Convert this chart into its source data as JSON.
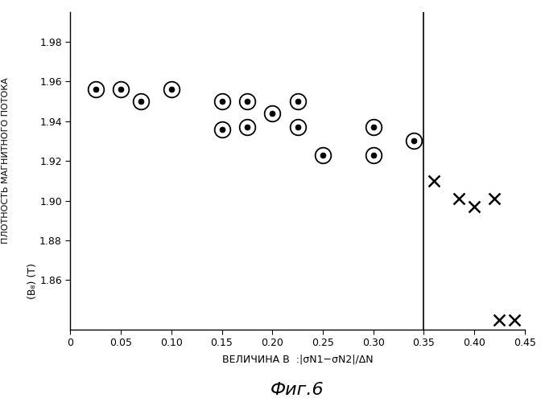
{
  "circle_points": [
    [
      0.025,
      1.956
    ],
    [
      0.05,
      1.956
    ],
    [
      0.07,
      1.95
    ],
    [
      0.1,
      1.956
    ],
    [
      0.15,
      1.95
    ],
    [
      0.15,
      1.936
    ],
    [
      0.175,
      1.95
    ],
    [
      0.175,
      1.937
    ],
    [
      0.2,
      1.944
    ],
    [
      0.225,
      1.95
    ],
    [
      0.225,
      1.937
    ],
    [
      0.25,
      1.923
    ],
    [
      0.3,
      1.937
    ],
    [
      0.3,
      1.923
    ],
    [
      0.34,
      1.93
    ]
  ],
  "cross_points": [
    [
      0.36,
      1.91
    ],
    [
      0.385,
      1.901
    ],
    [
      0.4,
      1.897
    ],
    [
      0.42,
      1.901
    ],
    [
      0.425,
      1.84
    ],
    [
      0.44,
      1.84
    ]
  ],
  "vline_x": 0.35,
  "xlim": [
    0.0,
    0.45
  ],
  "ylim": [
    1.835,
    1.995
  ],
  "xticks": [
    0,
    0.05,
    0.1,
    0.15,
    0.2,
    0.25,
    0.3,
    0.35,
    0.4,
    0.45
  ],
  "yticks": [
    1.86,
    1.88,
    1.9,
    1.92,
    1.94,
    1.96,
    1.98
  ],
  "ytick_labels": [
    "1.86",
    "1.88",
    "1.90",
    "1.92",
    "1.94",
    "1.96",
    "1.98"
  ],
  "xlabel_line1": "ВЕЛИЧИНА B  :|",
  "xlabel_main": "ВЕЛИЧИНА B  :|σN1−σN2|/ΔN",
  "ylabel_top": "ПЛОТНОСТЬ МАГНИТНОГО ПОТОКА",
  "ylabel_bot": "(B₈) (Т)",
  "caption": "Фиг.6",
  "background_color": "#ffffff",
  "line_color": "#000000",
  "tick_fontsize": 9,
  "xlabel_fontsize": 9,
  "ylabel_top_fontsize": 8,
  "ylabel_bot_fontsize": 9,
  "caption_fontsize": 16,
  "circle_outer_size": 200,
  "circle_inner_size": 25,
  "cross_size": 100
}
